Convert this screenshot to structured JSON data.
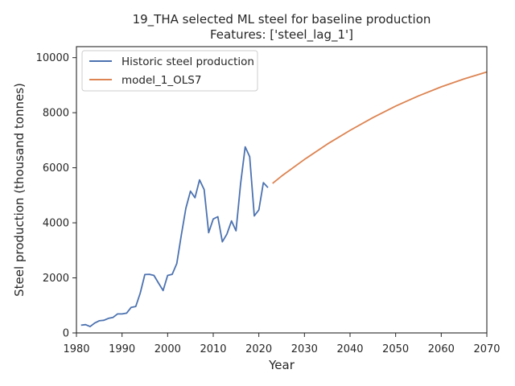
{
  "chart_data": {
    "type": "line",
    "title": "19_THA selected ML steel for baseline production",
    "subtitle": "Features: ['steel_lag_1']",
    "xlabel": "Year",
    "ylabel": "Steel production (thousand tonnes)",
    "xlim": [
      1980,
      2070
    ],
    "ylim": [
      0,
      10400
    ],
    "xticks": [
      1980,
      1990,
      2000,
      2010,
      2020,
      2030,
      2040,
      2050,
      2060,
      2070
    ],
    "yticks": [
      0,
      2000,
      4000,
      6000,
      8000,
      10000
    ],
    "grid": false,
    "legend_position": "upper-left",
    "series": [
      {
        "name": "Historic steel production",
        "color": "#4c72b0",
        "x": [
          1981,
          1982,
          1983,
          1984,
          1985,
          1986,
          1987,
          1988,
          1989,
          1990,
          1991,
          1992,
          1993,
          1994,
          1995,
          1996,
          1997,
          1998,
          1999,
          2000,
          2001,
          2002,
          2003,
          2004,
          2005,
          2006,
          2007,
          2008,
          2009,
          2010,
          2011,
          2012,
          2013,
          2014,
          2015,
          2016,
          2017,
          2018,
          2019,
          2020,
          2021,
          2022
        ],
        "y": [
          280,
          300,
          230,
          360,
          440,
          460,
          530,
          560,
          690,
          690,
          720,
          930,
          960,
          1450,
          2120,
          2130,
          2090,
          1810,
          1540,
          2090,
          2130,
          2520,
          3550,
          4530,
          5150,
          4910,
          5560,
          5210,
          3640,
          4140,
          4220,
          3310,
          3590,
          4070,
          3710,
          5420,
          6760,
          6400,
          4250,
          4470,
          5460,
          5280
        ]
      },
      {
        "name": "model_1_OLS7",
        "color": "#dd8452",
        "x": [
          2023,
          2025,
          2030,
          2035,
          2040,
          2045,
          2050,
          2055,
          2060,
          2065,
          2070
        ],
        "y": [
          5430,
          5700,
          6300,
          6860,
          7360,
          7820,
          8240,
          8610,
          8940,
          9230,
          9480
        ]
      }
    ]
  }
}
